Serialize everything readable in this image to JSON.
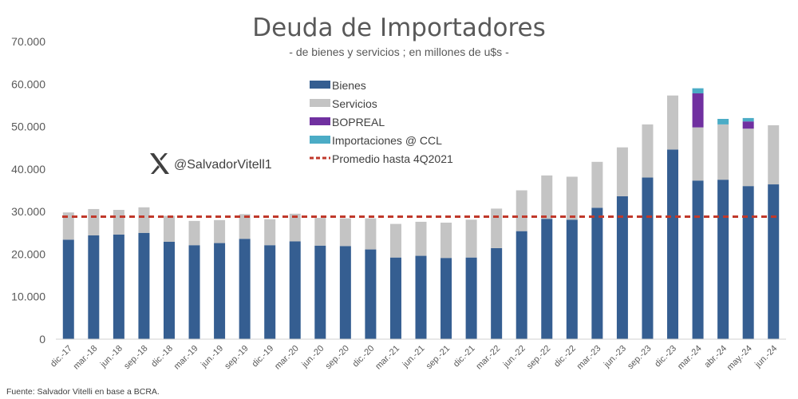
{
  "chart_data": {
    "type": "bar",
    "stacked": true,
    "title": "Deuda de Importadores",
    "subtitle": "- de bienes y servicios ; en millones de u$s  -",
    "ylim": [
      0,
      70000
    ],
    "yticks": [
      "0",
      "10.000",
      "20.000",
      "30.000",
      "40.000",
      "50.000",
      "60.000",
      "70.000"
    ],
    "grid": false,
    "legend_position": "top-center",
    "categories": [
      "dic.-17",
      "mar.-18",
      "jun.-18",
      "sep.-18",
      "dic.-18",
      "mar.-19",
      "jun.-19",
      "sep.-19",
      "dic.-19",
      "mar.-20",
      "jun.-20",
      "sep.-20",
      "dic.-20",
      "mar.-21",
      "jun.-21",
      "sep.-21",
      "dic.-21",
      "mar.-22",
      "jun.-22",
      "sep.-22",
      "dic.-22",
      "mar.-23",
      "jun.-23",
      "sep.-23",
      "dic.-23",
      "mar.-24",
      "abr.-24",
      "may.-24",
      "jun.-24"
    ],
    "series": [
      {
        "name": "Bienes",
        "color": "#355e91",
        "values": [
          23400,
          24400,
          24600,
          25000,
          22900,
          22100,
          22600,
          23600,
          22100,
          23000,
          22000,
          21900,
          21100,
          19200,
          19600,
          19100,
          19200,
          21400,
          25400,
          28300,
          28100,
          30900,
          33600,
          38000,
          44600,
          37300,
          37500,
          36000,
          36400
        ]
      },
      {
        "name": "Servicios",
        "color": "#c4c4c4",
        "values": [
          6400,
          6200,
          5800,
          6000,
          6100,
          5700,
          5400,
          5800,
          6100,
          6500,
          6500,
          6500,
          7300,
          7900,
          8000,
          8300,
          8900,
          9300,
          9600,
          10200,
          10100,
          10800,
          11500,
          12500,
          12700,
          12500,
          13000,
          13500,
          13900
        ]
      },
      {
        "name": "BOPREAL",
        "color": "#7030a0",
        "values": [
          0,
          0,
          0,
          0,
          0,
          0,
          0,
          0,
          0,
          0,
          0,
          0,
          0,
          0,
          0,
          0,
          0,
          0,
          0,
          0,
          0,
          0,
          0,
          0,
          0,
          8000,
          0,
          1700,
          0
        ]
      },
      {
        "name": "Importaciones @ CCL",
        "color": "#4bacc6",
        "values": [
          0,
          0,
          0,
          0,
          0,
          0,
          0,
          0,
          0,
          0,
          0,
          0,
          0,
          0,
          0,
          0,
          0,
          0,
          0,
          0,
          0,
          0,
          0,
          0,
          0,
          1200,
          1300,
          800,
          0
        ]
      }
    ],
    "reference_line": {
      "name": "Promedio hasta 4Q2021",
      "value": 28800,
      "color": "#c0392b",
      "style": "dashed"
    }
  },
  "watermark": {
    "handle": "@SalvadorVitell1",
    "icon": "x-logo-icon"
  },
  "source": "Fuente: Salvador Vitelli en base a BCRA."
}
